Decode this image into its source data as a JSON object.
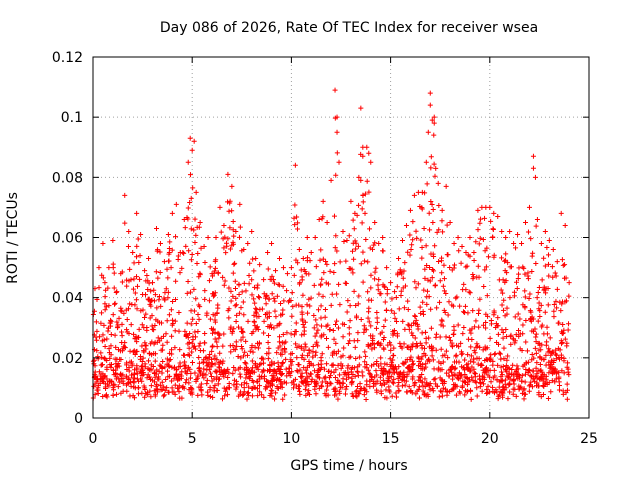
{
  "chart_data": {
    "type": "scatter",
    "title": "Day 086 of 2026, Rate Of TEC Index for receiver wsea",
    "xlabel": "GPS time / hours",
    "ylabel": "ROTI / TECUs",
    "xlim": [
      0,
      25
    ],
    "ylim": [
      0,
      0.12
    ],
    "xticks": [
      0,
      5,
      10,
      15,
      20,
      25
    ],
    "xtick_labels": [
      "0",
      "5",
      "10",
      "15",
      "20",
      "25"
    ],
    "yticks": [
      0,
      0.02,
      0.04,
      0.06,
      0.08,
      0.1,
      0.12
    ],
    "ytick_labels": [
      "0",
      "0.02",
      "0.04",
      "0.06",
      "0.08",
      "0.1",
      "0.12"
    ],
    "grid": true,
    "marker": "+",
    "series": [
      {
        "name": "ROTI",
        "color": "#ff0000",
        "x": [
          0.1,
          0.3,
          0.5,
          0.6,
          0.8,
          1.0,
          1.2,
          1.4,
          1.6,
          1.8,
          2.0,
          2.2,
          2.4,
          2.6,
          2.8,
          3.0,
          3.2,
          3.4,
          3.6,
          3.8,
          4.0,
          4.2,
          4.4,
          4.6,
          4.8,
          4.9,
          5.0,
          5.1,
          5.2,
          5.4,
          5.6,
          5.8,
          6.0,
          6.2,
          6.4,
          6.6,
          6.8,
          7.0,
          7.2,
          7.4,
          7.6,
          7.8,
          8.0,
          8.2,
          8.4,
          8.6,
          8.8,
          9.0,
          9.2,
          9.4,
          9.6,
          9.8,
          10.0,
          10.2,
          10.4,
          10.6,
          10.8,
          11.0,
          11.2,
          11.4,
          11.6,
          11.8,
          12.0,
          12.2,
          12.3,
          12.4,
          12.6,
          12.8,
          13.0,
          13.2,
          13.4,
          13.5,
          13.6,
          13.8,
          14.0,
          14.2,
          14.4,
          14.6,
          14.8,
          15.0,
          15.2,
          15.4,
          15.6,
          15.8,
          16.0,
          16.2,
          16.4,
          16.6,
          16.8,
          17.0,
          17.1,
          17.2,
          17.4,
          17.6,
          17.8,
          18.0,
          18.2,
          18.4,
          18.6,
          18.8,
          19.0,
          19.2,
          19.4,
          19.6,
          19.8,
          20.0,
          20.2,
          20.4,
          20.6,
          20.8,
          21.0,
          21.2,
          21.4,
          21.6,
          21.8,
          22.0,
          22.2,
          22.3,
          22.4,
          22.6,
          22.8,
          23.0,
          23.2,
          23.4,
          23.6,
          23.8,
          24.0,
          0.2,
          1.1,
          2.3,
          3.1,
          4.3,
          6.1,
          7.1,
          8.3,
          9.3,
          10.5,
          11.3,
          12.5,
          13.7,
          14.5,
          15.5,
          16.5,
          17.5,
          18.5,
          19.5,
          20.5,
          21.5,
          22.5,
          23.5,
          13.6,
          17.0,
          17.2,
          12.3,
          13.9,
          16.9,
          22.2
        ],
        "y": [
          0.043,
          0.05,
          0.058,
          0.045,
          0.05,
          0.059,
          0.042,
          0.048,
          0.074,
          0.062,
          0.055,
          0.068,
          0.061,
          0.049,
          0.053,
          0.045,
          0.063,
          0.058,
          0.052,
          0.061,
          0.068,
          0.071,
          0.055,
          0.066,
          0.085,
          0.093,
          0.089,
          0.092,
          0.075,
          0.065,
          0.057,
          0.06,
          0.048,
          0.06,
          0.07,
          0.064,
          0.081,
          0.077,
          0.062,
          0.071,
          0.056,
          0.058,
          0.062,
          0.053,
          0.051,
          0.046,
          0.055,
          0.058,
          0.049,
          0.053,
          0.05,
          0.048,
          0.05,
          0.084,
          0.056,
          0.053,
          0.06,
          0.055,
          0.06,
          0.066,
          0.072,
          0.065,
          0.079,
          0.109,
          0.1,
          0.085,
          0.062,
          0.059,
          0.072,
          0.068,
          0.08,
          0.103,
          0.087,
          0.09,
          0.085,
          0.065,
          0.058,
          0.06,
          0.05,
          0.045,
          0.042,
          0.053,
          0.059,
          0.064,
          0.069,
          0.074,
          0.075,
          0.075,
          0.085,
          0.108,
          0.099,
          0.098,
          0.078,
          0.069,
          0.077,
          0.065,
          0.058,
          0.06,
          0.057,
          0.055,
          0.06,
          0.055,
          0.069,
          0.07,
          0.07,
          0.07,
          0.068,
          0.067,
          0.062,
          0.06,
          0.062,
          0.058,
          0.061,
          0.058,
          0.065,
          0.07,
          0.087,
          0.08,
          0.066,
          0.058,
          0.062,
          0.059,
          0.056,
          0.052,
          0.068,
          0.064,
          0.045,
          0.013,
          0.011,
          0.01,
          0.012,
          0.014,
          0.013,
          0.011,
          0.012,
          0.013,
          0.012,
          0.014,
          0.018,
          0.022,
          0.02,
          0.015,
          0.018,
          0.016,
          0.014,
          0.013,
          0.012,
          0.014,
          0.013,
          0.012,
          0.09,
          0.104,
          0.1,
          0.095,
          0.088,
          0.095,
          0.083
        ]
      }
    ]
  }
}
